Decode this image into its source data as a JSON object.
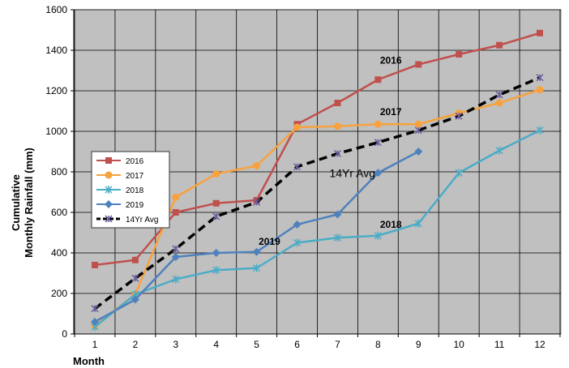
{
  "chart_data": {
    "type": "line",
    "xlabel": "Month",
    "ylabel_lines": [
      "Cumulative",
      "Monthly Rainfall (mm)"
    ],
    "xlim": [
      1,
      12
    ],
    "ylim": [
      0,
      1600
    ],
    "x_ticks": [
      "1",
      "2",
      "3",
      "4",
      "5",
      "6",
      "7",
      "8",
      "9",
      "10",
      "11",
      "12"
    ],
    "y_ticks": [
      "0",
      "200",
      "400",
      "600",
      "800",
      "1000",
      "1200",
      "1400",
      "1600"
    ],
    "grid": true,
    "plot_background": "#c0c0c0",
    "legend_placement": "left",
    "series": [
      {
        "name": "2016",
        "color": "#c0504d",
        "marker": "square",
        "x": [
          1,
          2,
          3,
          4,
          5,
          6,
          7,
          8,
          9,
          10,
          11,
          12
        ],
        "values": [
          340,
          365,
          600,
          645,
          660,
          1035,
          1140,
          1255,
          1330,
          1380,
          1425,
          1485
        ]
      },
      {
        "name": "2017",
        "color": "#f7a23e",
        "marker": "circle",
        "x": [
          1,
          2,
          3,
          4,
          5,
          6,
          7,
          8,
          9,
          10,
          11,
          12
        ],
        "values": [
          40,
          195,
          675,
          790,
          830,
          1020,
          1025,
          1035,
          1035,
          1090,
          1140,
          1205
        ]
      },
      {
        "name": "2018",
        "color": "#4bacc6",
        "marker": "star",
        "x": [
          1,
          2,
          3,
          4,
          5,
          6,
          7,
          8,
          9,
          10,
          11,
          12
        ],
        "values": [
          35,
          195,
          270,
          315,
          325,
          450,
          475,
          485,
          545,
          795,
          905,
          1005
        ]
      },
      {
        "name": "2019",
        "color": "#4f81bd",
        "marker": "diamond",
        "x": [
          1,
          2,
          3,
          4,
          5,
          6,
          7,
          8,
          9
        ],
        "values": [
          60,
          170,
          380,
          400,
          405,
          540,
          590,
          795,
          900
        ]
      },
      {
        "name": "14Yr Avg",
        "color": "#000000",
        "marker": "x",
        "dashed": true,
        "x": [
          1,
          2,
          3,
          4,
          5,
          6,
          7,
          8,
          9,
          10,
          11,
          12
        ],
        "values": [
          125,
          275,
          420,
          580,
          650,
          825,
          890,
          945,
          1005,
          1075,
          1180,
          1265
        ]
      }
    ],
    "annotations": [
      {
        "text": "2016",
        "x": 8.05,
        "y": 1335,
        "style": "bold"
      },
      {
        "text": "2017",
        "x": 8.05,
        "y": 1080,
        "style": "bold"
      },
      {
        "text": "14Yr Avg",
        "x": 6.8,
        "y": 775,
        "style": "large"
      },
      {
        "text": "2019",
        "x": 5.05,
        "y": 440,
        "style": "bold"
      },
      {
        "text": "2018",
        "x": 8.05,
        "y": 525,
        "style": "bold"
      }
    ]
  }
}
